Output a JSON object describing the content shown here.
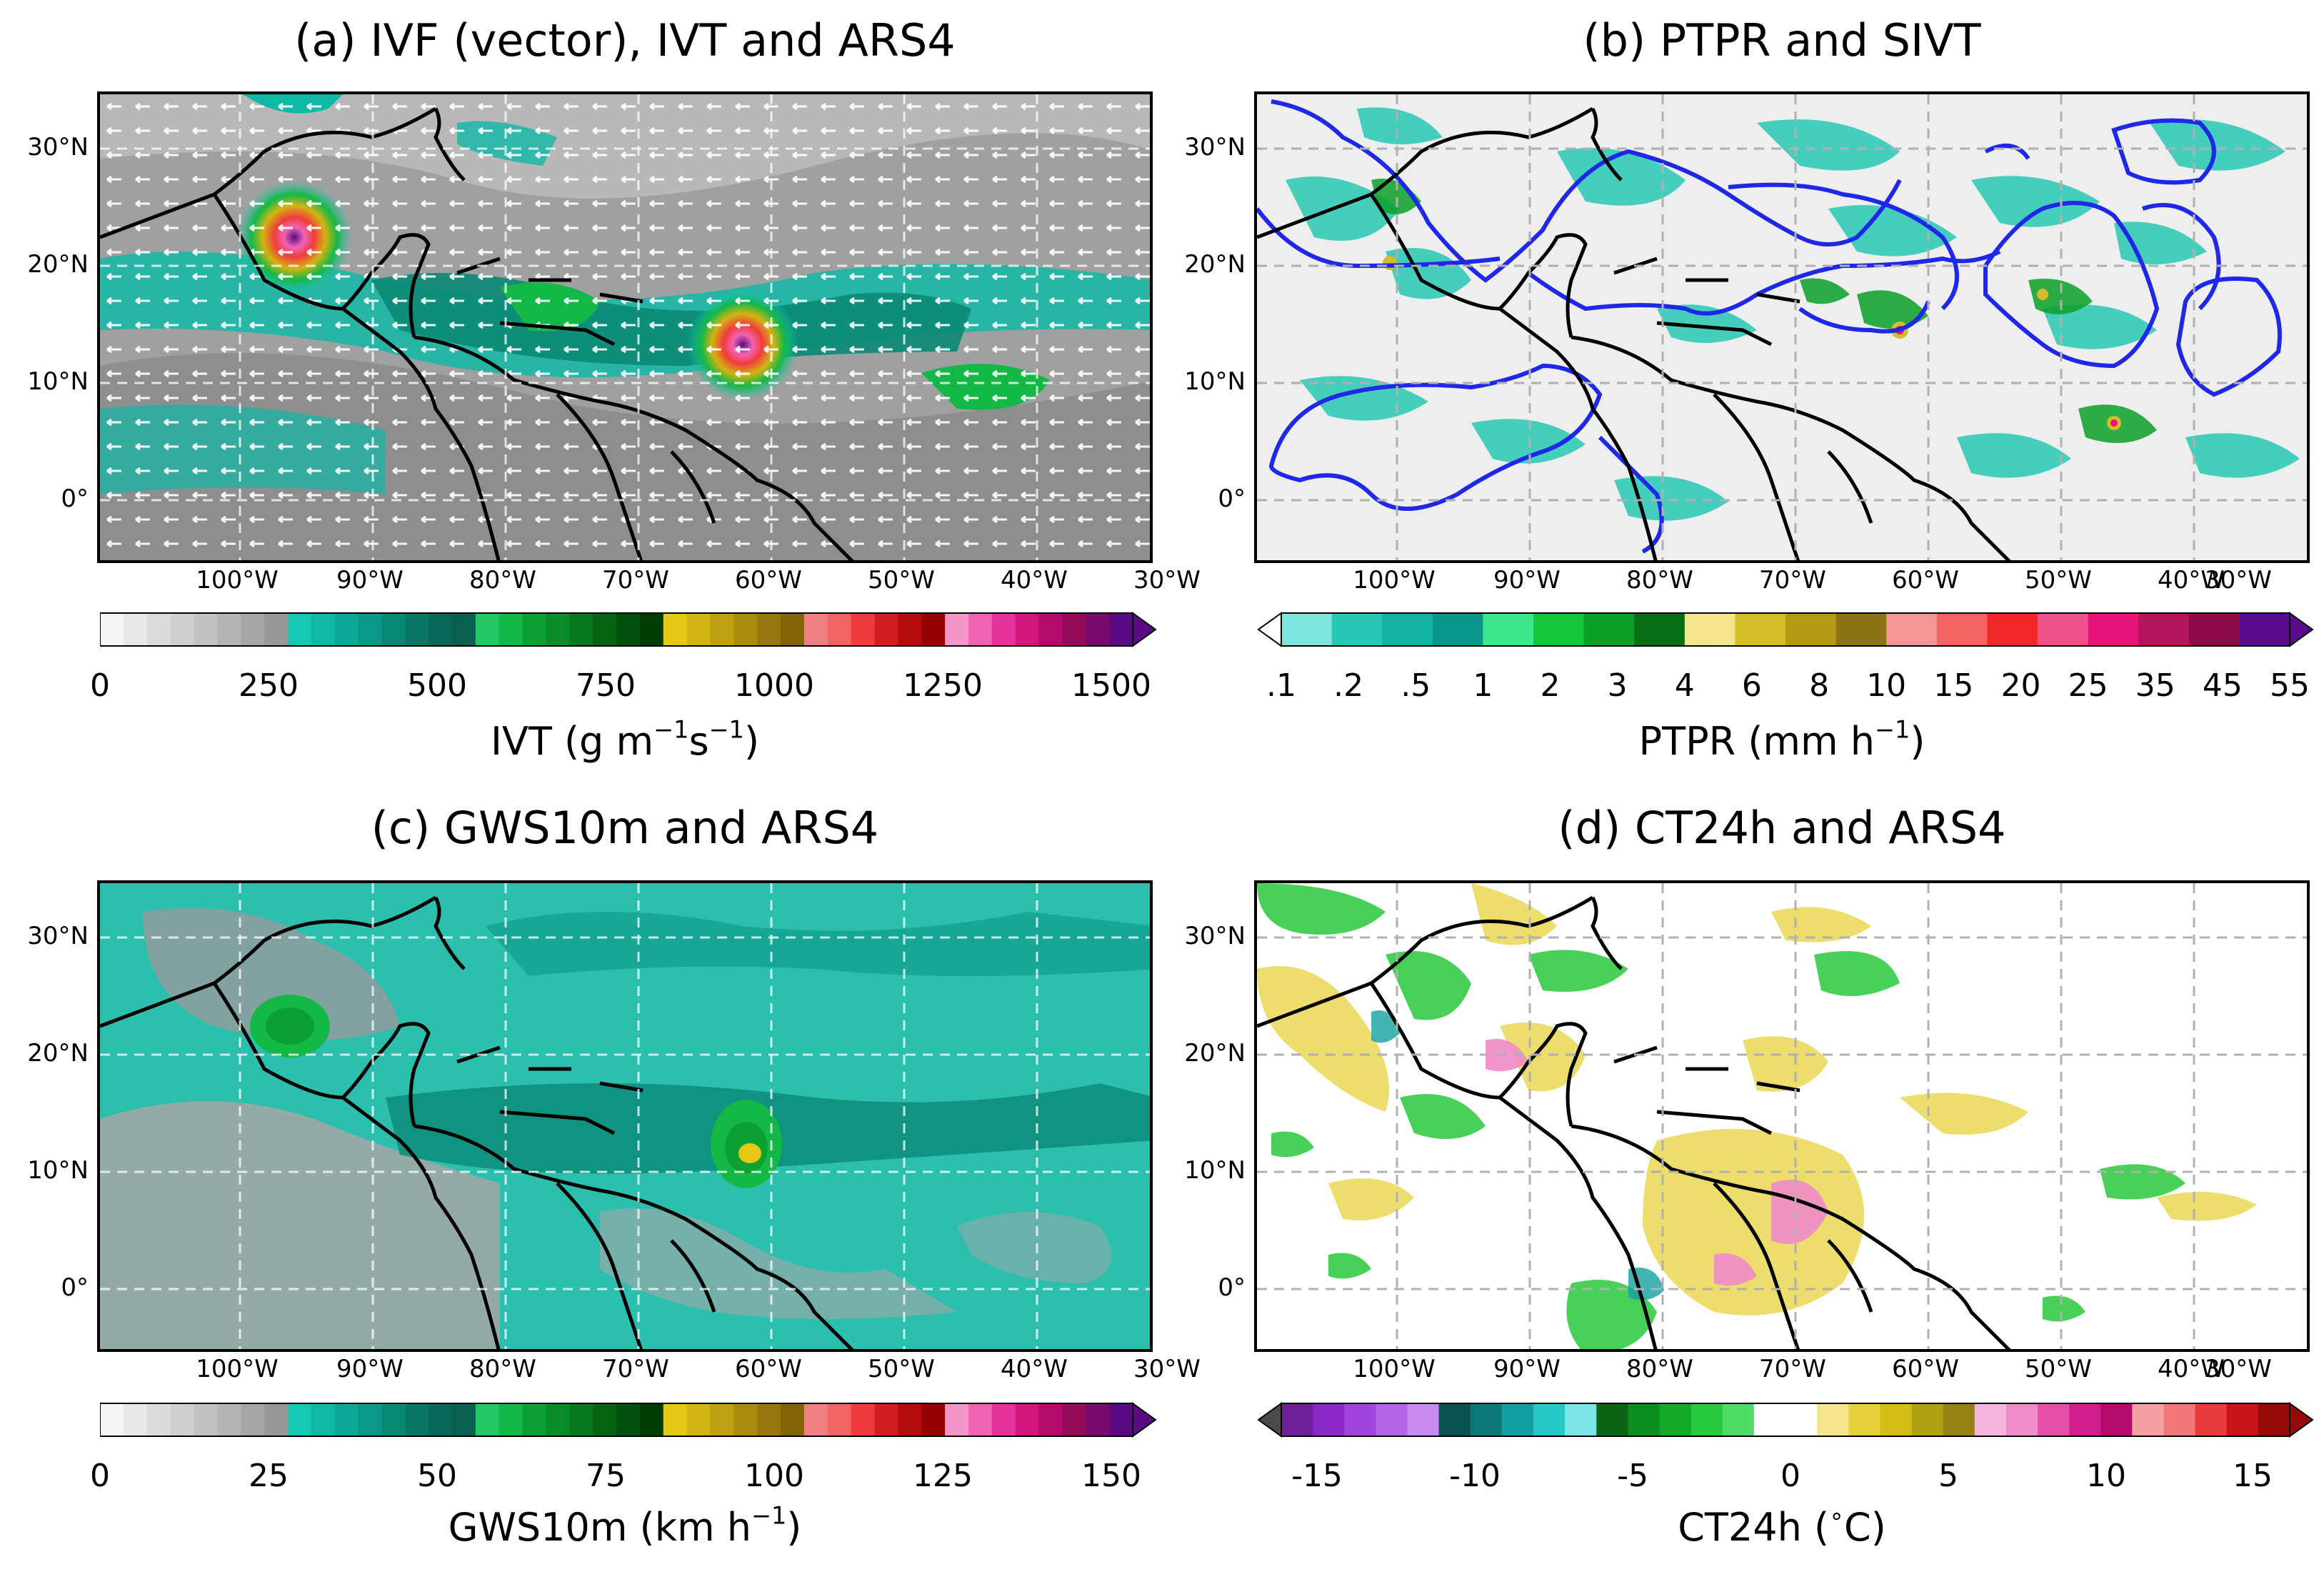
{
  "panels": [
    {
      "id": "a",
      "title": "(a) IVF (vector), IVT and ARS4",
      "colorbar": {
        "ticks": [
          "0",
          "250",
          "500",
          "750",
          "1000",
          "1250",
          "1500"
        ],
        "label_main": "IVT (g m",
        "label_sup1": "−1",
        "label_mid": "s",
        "label_sup2": "−1",
        "label_end": ")",
        "colors": [
          "#f5f5f5",
          "#e8e8e8",
          "#dcdcdc",
          "#cfcfcf",
          "#c2c2c2",
          "#b4b4b4",
          "#a6a6a6",
          "#989898",
          "#14c8b4",
          "#10b8a6",
          "#0ea896",
          "#0c9886",
          "#0a8876",
          "#087866",
          "#066856",
          "#0a6050",
          "#22c864",
          "#14b846",
          "#0aa032",
          "#088c28",
          "#06781e",
          "#046414",
          "#03500c",
          "#023c06",
          "#e6c814",
          "#d2b412",
          "#bea010",
          "#aa8c0e",
          "#96780c",
          "#826408",
          "#f08080",
          "#f06464",
          "#f03c3c",
          "#d21e1e",
          "#b40c0c",
          "#960000",
          "#f596c8",
          "#f064b4",
          "#e6329b",
          "#d2147d",
          "#b40a6e",
          "#960a5a",
          "#780a6e",
          "#5a0a82"
        ]
      }
    },
    {
      "id": "b",
      "title": "(b) PTPR and SIVT",
      "colorbar": {
        "ticks": [
          ".1",
          ".2",
          ".5",
          "1",
          "2",
          "3",
          "4",
          "6",
          "8",
          "10",
          "15",
          "20",
          "25",
          "35",
          "45",
          "55"
        ],
        "label_main": "PTPR (mm h",
        "label_sup1": "−1",
        "label_end": ")",
        "colors": [
          "#7ee6dc",
          "#28c8b4",
          "#14b4a0",
          "#0a968c",
          "#3ce68c",
          "#14c83c",
          "#0aa028",
          "#086e14",
          "#f5e68c",
          "#d2be28",
          "#b49b14",
          "#8c7314",
          "#f59696",
          "#f56464",
          "#f02828",
          "#f0508c",
          "#e61478",
          "#b4145a",
          "#8c0a46",
          "#5a0a8c"
        ]
      }
    },
    {
      "id": "c",
      "title": "(c) GWS10m and ARS4",
      "colorbar": {
        "ticks": [
          "0",
          "25",
          "50",
          "75",
          "100",
          "125",
          "150"
        ],
        "label_main": "GWS10m (km h",
        "label_sup1": "−1",
        "label_end": ")",
        "colors": [
          "#f5f5f5",
          "#e8e8e8",
          "#dcdcdc",
          "#cfcfcf",
          "#c2c2c2",
          "#b4b4b4",
          "#a6a6a6",
          "#989898",
          "#14c8b4",
          "#10b8a6",
          "#0ea896",
          "#0c9886",
          "#0a8876",
          "#087866",
          "#066856",
          "#0a6050",
          "#22c864",
          "#14b846",
          "#0aa032",
          "#088c28",
          "#06781e",
          "#046414",
          "#03500c",
          "#023c06",
          "#e6c814",
          "#d2b412",
          "#bea010",
          "#aa8c0e",
          "#96780c",
          "#826408",
          "#f08080",
          "#f06464",
          "#f03c3c",
          "#d21e1e",
          "#b40c0c",
          "#960000",
          "#f596c8",
          "#f064b4",
          "#e6329b",
          "#d2147d",
          "#b40a6e",
          "#960a5a",
          "#780a6e",
          "#5a0a82"
        ]
      }
    },
    {
      "id": "d",
      "title": "(d) CT24h and ARS4",
      "colorbar": {
        "ticks": [
          "-15",
          "-10",
          "-5",
          "0",
          "5",
          "10",
          "15"
        ],
        "label_main": "CT24h (",
        "label_sup1": "∘",
        "label_end": "C)",
        "colors": [
          "#6e1e96",
          "#8c28c8",
          "#a046dc",
          "#b464e6",
          "#c88cf0",
          "#0a5050",
          "#0a7878",
          "#14a0a0",
          "#28c8c8",
          "#7ee6e6",
          "#0a6414",
          "#0a8c1e",
          "#14aa28",
          "#28c83c",
          "#50dc64",
          "#ffffff",
          "#ffffff",
          "#f5e68c",
          "#e6d23c",
          "#d2be14",
          "#b4a014",
          "#968214",
          "#f5b4dc",
          "#f08cc8",
          "#e650aa",
          "#d21e8c",
          "#b40a6e",
          "#f5a0a0",
          "#f07878",
          "#e63c3c",
          "#c81414",
          "#960a0a"
        ]
      }
    }
  ],
  "axes": {
    "lat_labels": [
      "30°N",
      "20°N",
      "10°N",
      "0°"
    ],
    "lon_labels": [
      "100°W",
      "90°W",
      "80°W",
      "70°W",
      "60°W",
      "50°W",
      "40°W",
      "30°W"
    ]
  }
}
